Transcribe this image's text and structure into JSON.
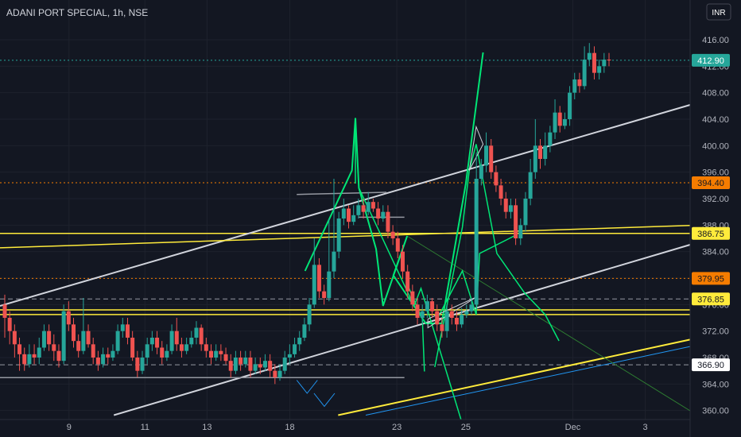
{
  "chart_data": {
    "type": "candlestick",
    "title": "ADANI PORT SPECIAL, 1h, NSE",
    "currency": "INR",
    "ylim": [
      356,
      422
    ],
    "y_ticks": [
      "416.00",
      "412.00",
      "408.00",
      "404.00",
      "400.00",
      "396.00",
      "392.00",
      "388.00",
      "384.00",
      "380.00",
      "376.00",
      "372.00",
      "368.00",
      "364.00",
      "360.00"
    ],
    "x_ticks": [
      {
        "label": "9",
        "pos": 0.1
      },
      {
        "label": "11",
        "pos": 0.21
      },
      {
        "label": "13",
        "pos": 0.3
      },
      {
        "label": "18",
        "pos": 0.42
      },
      {
        "label": "23",
        "pos": 0.575
      },
      {
        "label": "25",
        "pos": 0.675
      },
      {
        "label": "Dec",
        "pos": 0.83
      },
      {
        "label": "3",
        "pos": 0.935
      }
    ],
    "price_tags": [
      {
        "label": "412.90",
        "value": 412.9,
        "bg": "#26a69a",
        "fg": "#ffffff"
      },
      {
        "label": "394.40",
        "value": 394.4,
        "bg": "#f57c00",
        "fg": "#131722"
      },
      {
        "label": "386.75",
        "value": 386.75,
        "bg": "#ffeb3b",
        "fg": "#131722"
      },
      {
        "label": "379.95",
        "value": 379.95,
        "bg": "#f57c00",
        "fg": "#131722"
      },
      {
        "label": "376.85",
        "value": 376.85,
        "bg": "#ffeb3b",
        "fg": "#131722"
      },
      {
        "label": "366.90",
        "value": 366.9,
        "bg": "#ffffff",
        "fg": "#131722"
      }
    ],
    "candles": [
      [
        376,
        374,
        377.5,
        371
      ],
      [
        374,
        372,
        375,
        370
      ],
      [
        372,
        370,
        373,
        368
      ],
      [
        370,
        368.5,
        371,
        366
      ],
      [
        368.5,
        367,
        369.5,
        366
      ],
      [
        367,
        368.5,
        370,
        366.5
      ],
      [
        368.5,
        368,
        370,
        367
      ],
      [
        368,
        369.5,
        371,
        367
      ],
      [
        369.5,
        372,
        373,
        369
      ],
      [
        372,
        370,
        373,
        369
      ],
      [
        370,
        369,
        371.5,
        367.5
      ],
      [
        369,
        367.5,
        370,
        366.5
      ],
      [
        367.5,
        375,
        376,
        367
      ],
      [
        375,
        373,
        376.5,
        372
      ],
      [
        373,
        370.5,
        374,
        369.5
      ],
      [
        370.5,
        369,
        371.5,
        368
      ],
      [
        369,
        372,
        377,
        368.5
      ],
      [
        372,
        370,
        373,
        369.5
      ],
      [
        370,
        368,
        371,
        367
      ],
      [
        368,
        367,
        369,
        366
      ],
      [
        367,
        368.5,
        369.5,
        366.5
      ],
      [
        368.5,
        368,
        369.5,
        367
      ],
      [
        368,
        369,
        370,
        367.5
      ],
      [
        369,
        372,
        373,
        368.5
      ],
      [
        372,
        373,
        374,
        371
      ],
      [
        373,
        371,
        374,
        370
      ],
      [
        371,
        368,
        372,
        367.5
      ],
      [
        368,
        366,
        369,
        365
      ],
      [
        366,
        368,
        369,
        365.5
      ],
      [
        368,
        370,
        371,
        367
      ],
      [
        370,
        371,
        372,
        369
      ],
      [
        371,
        369.5,
        372,
        368.5
      ],
      [
        369.5,
        368,
        370.5,
        367
      ],
      [
        368,
        369,
        370,
        367.5
      ],
      [
        369,
        372,
        373,
        368.5
      ],
      [
        372,
        370,
        374,
        369
      ],
      [
        370,
        369,
        371,
        368
      ],
      [
        369,
        370,
        371,
        368.5
      ],
      [
        370,
        371,
        372,
        369.5
      ],
      [
        371,
        372.5,
        373.5,
        370
      ],
      [
        372.5,
        370,
        373,
        369
      ],
      [
        370,
        369,
        371,
        368
      ],
      [
        369,
        368,
        370,
        367
      ],
      [
        368,
        369,
        370,
        367.5
      ],
      [
        369,
        368.5,
        370,
        367.5
      ],
      [
        368.5,
        367.5,
        369.5,
        367
      ],
      [
        367.5,
        366,
        368.5,
        365
      ],
      [
        366,
        368,
        369,
        365.5
      ],
      [
        368,
        367,
        369,
        366
      ],
      [
        367,
        368,
        369,
        366.5
      ],
      [
        368,
        366,
        369,
        365
      ],
      [
        366,
        367,
        368,
        365.5
      ],
      [
        367,
        366.5,
        368,
        365.5
      ],
      [
        366.5,
        367.5,
        368.5,
        366
      ],
      [
        367.5,
        366,
        368.5,
        365
      ],
      [
        366,
        365,
        367,
        364
      ],
      [
        365,
        366,
        367,
        364.5
      ],
      [
        366,
        368,
        369,
        365.5
      ],
      [
        368,
        368.5,
        370,
        367
      ],
      [
        368.5,
        370,
        371,
        368
      ],
      [
        370,
        371,
        372,
        369
      ],
      [
        371,
        373,
        374,
        370.5
      ],
      [
        373,
        376,
        377,
        372
      ],
      [
        376,
        382,
        386,
        375.5
      ],
      [
        382,
        378,
        383,
        377
      ],
      [
        378,
        377,
        379,
        376
      ],
      [
        377,
        381,
        389,
        376.5
      ],
      [
        381,
        384,
        395,
        380
      ],
      [
        384,
        389,
        390,
        383
      ],
      [
        389,
        390.5,
        392,
        388
      ],
      [
        390.5,
        388.5,
        391,
        387.5
      ],
      [
        388.5,
        389.5,
        391,
        388
      ],
      [
        389.5,
        391,
        392,
        389
      ],
      [
        391,
        390,
        392,
        389
      ],
      [
        390,
        391.5,
        393,
        389.5
      ],
      [
        391.5,
        390.5,
        392,
        390
      ],
      [
        390.5,
        389,
        391.5,
        388
      ],
      [
        389,
        390,
        391,
        388.5
      ],
      [
        390,
        387,
        391,
        386
      ],
      [
        387,
        386,
        388,
        385
      ],
      [
        386,
        384,
        387,
        383
      ],
      [
        384,
        381,
        385,
        380
      ],
      [
        381,
        378,
        382,
        377
      ],
      [
        378,
        376,
        379,
        375
      ],
      [
        376,
        374,
        377,
        373
      ],
      [
        374,
        375,
        376,
        373
      ],
      [
        375,
        376.5,
        377.5,
        374
      ],
      [
        376.5,
        375,
        377,
        374
      ],
      [
        375,
        373,
        376,
        372
      ],
      [
        373,
        372,
        374,
        371
      ],
      [
        372,
        375,
        376,
        371
      ],
      [
        375,
        374,
        376,
        373
      ],
      [
        374,
        373,
        375,
        372
      ],
      [
        373,
        374.5,
        375.5,
        372.5
      ],
      [
        374.5,
        375,
        376,
        374
      ],
      [
        375,
        376,
        377,
        374.5
      ],
      [
        376,
        395,
        399,
        375.5
      ],
      [
        395,
        397,
        398,
        394
      ],
      [
        397,
        400,
        402,
        396
      ],
      [
        400,
        396,
        401,
        395
      ],
      [
        396,
        394,
        397,
        393
      ],
      [
        394,
        392,
        395,
        391
      ],
      [
        392,
        390,
        393,
        389
      ],
      [
        390,
        391,
        392,
        389
      ],
      [
        391,
        386,
        392,
        385
      ],
      [
        386,
        388,
        389,
        385
      ],
      [
        388,
        392,
        393,
        387
      ],
      [
        392,
        396,
        398,
        391
      ],
      [
        396,
        400,
        404,
        395
      ],
      [
        400,
        398,
        401,
        396.5
      ],
      [
        398,
        400,
        402,
        397
      ],
      [
        400,
        402,
        403,
        399
      ],
      [
        402,
        405,
        407,
        401
      ],
      [
        405,
        403,
        406,
        402
      ],
      [
        403,
        404,
        405,
        402.5
      ],
      [
        404,
        408,
        409,
        403
      ],
      [
        408,
        410,
        411,
        407
      ],
      [
        410,
        409,
        411,
        408
      ],
      [
        409,
        413,
        415,
        408.5
      ],
      [
        413,
        414,
        415.5,
        412
      ],
      [
        414,
        411,
        415,
        410
      ],
      [
        411,
        412,
        413,
        410
      ],
      [
        412,
        413,
        414,
        411
      ],
      [
        413,
        412.9,
        414,
        412
      ]
    ],
    "levels": [
      {
        "value": 394.4,
        "color": "#f57c00",
        "style": "dotted",
        "from": 0.0
      },
      {
        "value": 386.75,
        "color": "#ffeb3b",
        "style": "solid",
        "from": 0.0
      },
      {
        "value": 379.95,
        "color": "#f57c00",
        "style": "dotted",
        "from": 0.0
      },
      {
        "value": 376.85,
        "color": "#9598a1",
        "style": "dashed",
        "from": 0.0
      },
      {
        "value": 375.2,
        "color": "#ffeb3b",
        "style": "solid",
        "from": 0.0
      },
      {
        "value": 374.5,
        "color": "#ffeb3b",
        "style": "solid",
        "from": 0.0
      },
      {
        "value": 366.9,
        "color": "#9598a1",
        "style": "dashed",
        "from": 0.0
      },
      {
        "value": 412.9,
        "color": "#26a69a",
        "style": "dotted",
        "from": 0.0
      }
    ]
  }
}
